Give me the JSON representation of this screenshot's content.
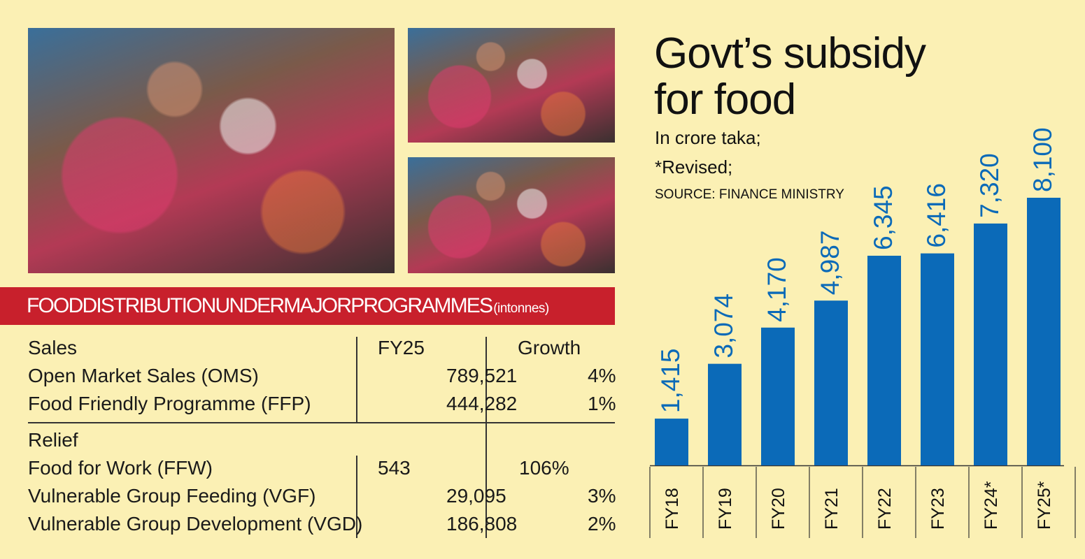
{
  "table": {
    "banner_title": "FOODDISTRIBUTIONUNDERMAJORPROGRAMMES",
    "banner_unit": "(intonnes)",
    "header": {
      "section": "Sales",
      "fy": "FY25",
      "growth": "Growth"
    },
    "sales_rows": [
      {
        "name": "Open Market Sales (OMS)",
        "fy25": "789,521",
        "growth": "4%"
      },
      {
        "name": "Food Friendly Programme (FFP)",
        "fy25": "444,282",
        "growth": "1%"
      }
    ],
    "relief_label": "Relief",
    "relief_rows": [
      {
        "name": "Food for Work (FFW)",
        "fy25": "543",
        "growth": "106%"
      },
      {
        "name": "Vulnerable Group Feeding (VGF)",
        "fy25": "29,095",
        "growth": "3%"
      },
      {
        "name": "Vulnerable Group Development (VGD)",
        "fy25": "186,808",
        "growth": "2%"
      }
    ]
  },
  "chart_data": {
    "type": "bar",
    "title": "Govt’s subsidy for food",
    "subtitle_lines": [
      "In crore taka;",
      "*Revised;"
    ],
    "source": "SOURCE: FINANCE MINISTRY",
    "categories": [
      "FY18",
      "FY19",
      "FY20",
      "FY21",
      "FY22",
      "FY23",
      "FY24*",
      "FY25*"
    ],
    "values": [
      1415,
      3074,
      4170,
      4987,
      6345,
      6416,
      7320,
      8100
    ],
    "value_labels": [
      "1,415",
      "3,074",
      "4,170",
      "4,987",
      "6,345",
      "6,416",
      "7,320",
      "8,100"
    ],
    "ylim": [
      0,
      8100
    ],
    "bar_color": "#0b6ab8",
    "label_color": "#0b6ab8",
    "grid": false
  }
}
